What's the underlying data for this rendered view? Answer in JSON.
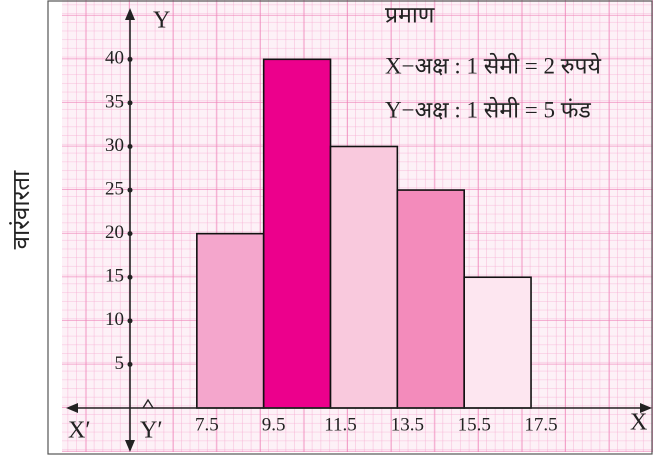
{
  "chart_data": {
    "type": "histogram",
    "ylabel": "वारंवारता",
    "scale_title": "प्रमाण",
    "scale_lines": [
      "X−अक्ष : 1 सेमी = 2 रुपये",
      "Y−अक्ष : 1 सेमी = 5 फंड"
    ],
    "axis_labels": {
      "x_pos": "X",
      "x_neg": "X′",
      "y_pos": "Y",
      "y_neg": "Y′"
    },
    "bins": [
      7.5,
      9.5,
      11.5,
      13.5,
      15.5,
      17.5
    ],
    "counts": [
      20,
      40,
      30,
      25,
      15
    ],
    "colors": [
      "#f4a6cc",
      "#ec008c",
      "#f9c9dd",
      "#f38bbb",
      "#fde6f0"
    ],
    "xlim": [
      5.5,
      21
    ],
    "ylim": [
      0,
      46
    ],
    "yticks": [
      5,
      10,
      15,
      20,
      25,
      30,
      35,
      40
    ],
    "grid": true
  }
}
